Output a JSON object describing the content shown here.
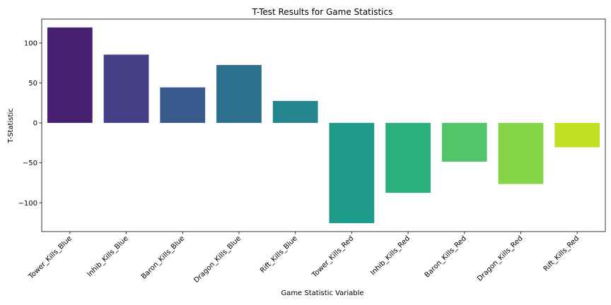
{
  "chart_data": {
    "type": "bar",
    "title": "T-Test Results for Game Statistics",
    "xlabel": "Game Statistic Variable",
    "ylabel": "T-Statistic",
    "categories": [
      "Tower_Kills_Blue",
      "Inhib_Kills_Blue",
      "Baron_Kills_Blue",
      "Dragon_Kills_Blue",
      "Rift_Kills_Blue",
      "Tower_Kills_Red",
      "Inhib_Kills_Red",
      "Baron_Kills_Red",
      "Dragon_Kills_Red",
      "Rift_Kills_Red"
    ],
    "values": [
      119.5,
      85.5,
      44.5,
      72.5,
      27.5,
      -125.5,
      -87.5,
      -48.5,
      -76.5,
      -30.5
    ],
    "colors": [
      "#482173",
      "#433e85",
      "#38598c",
      "#2d708e",
      "#25858e",
      "#1e9b8a",
      "#2ab07f",
      "#52c569",
      "#86d549",
      "#c2df23"
    ],
    "ylim": [
      -136,
      130
    ],
    "yticks": [
      -100,
      -50,
      0,
      50,
      100
    ],
    "ytick_labels": [
      "−100",
      "−50",
      "0",
      "50",
      "100"
    ],
    "grid": false,
    "legend": "none"
  }
}
